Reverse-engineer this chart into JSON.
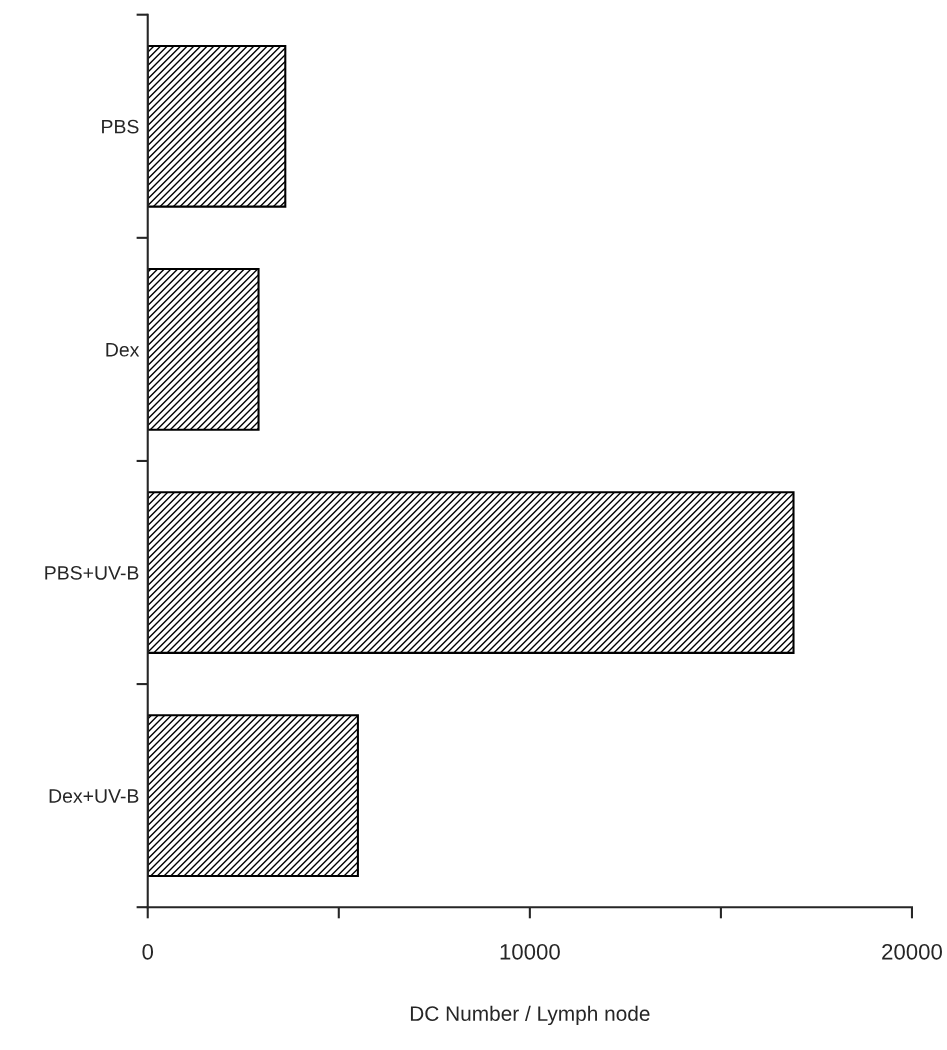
{
  "chart_data": {
    "type": "bar",
    "orientation": "horizontal",
    "categories": [
      "PBS",
      "Dex",
      "PBS+UV-B",
      "Dex+UV-B"
    ],
    "values": [
      3600,
      2900,
      16900,
      5500
    ],
    "color": "#000000",
    "xlabel": "DC Number / Lymph node",
    "xlim": [
      0,
      20000
    ],
    "xticks": [
      0,
      {
        "value": 5000,
        "label": null
      },
      10000,
      {
        "value": 15000,
        "label": null
      },
      20000
    ],
    "grid": false,
    "legend": false
  }
}
